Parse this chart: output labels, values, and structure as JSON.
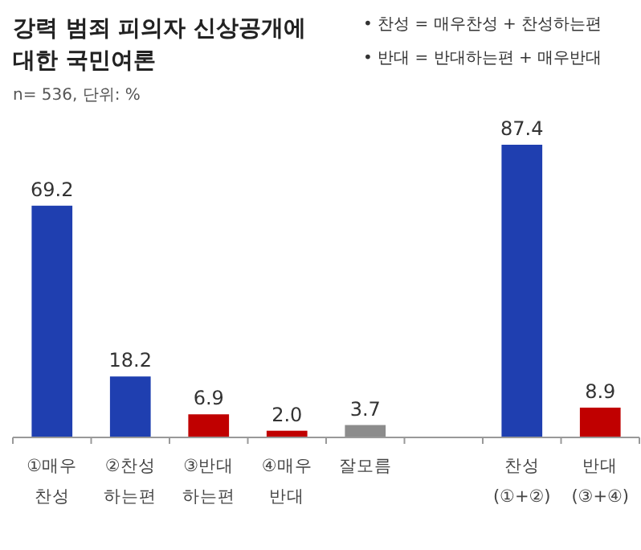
{
  "chart_data": {
    "type": "bar",
    "title": "강력 범죄 피의자 신상공개에 대한 국민여론",
    "subtitle": "n= 536, 단위: %",
    "annotations": [
      "• 찬성 = 매우찬성 + 찬성하는편",
      "• 반대 = 반대하는편 + 매우반대"
    ],
    "categories": [
      "①매우 찬성",
      "②찬성 하는편",
      "③반대 하는편",
      "④매우 반대",
      "잘모름",
      null,
      "찬성 (①+②)",
      "반대 (③+④)"
    ],
    "values": [
      69.2,
      18.2,
      6.9,
      2.0,
      3.7,
      null,
      87.4,
      8.9
    ],
    "colors": [
      "#1f3fb0",
      "#1f3fb0",
      "#c00000",
      "#c00000",
      "#8c8c8c",
      null,
      "#1f3fb0",
      "#c00000"
    ],
    "value_labels": [
      "69.2",
      "18.2",
      "6.9",
      "2.0",
      "3.7",
      null,
      "87.4",
      "8.9"
    ]
  }
}
